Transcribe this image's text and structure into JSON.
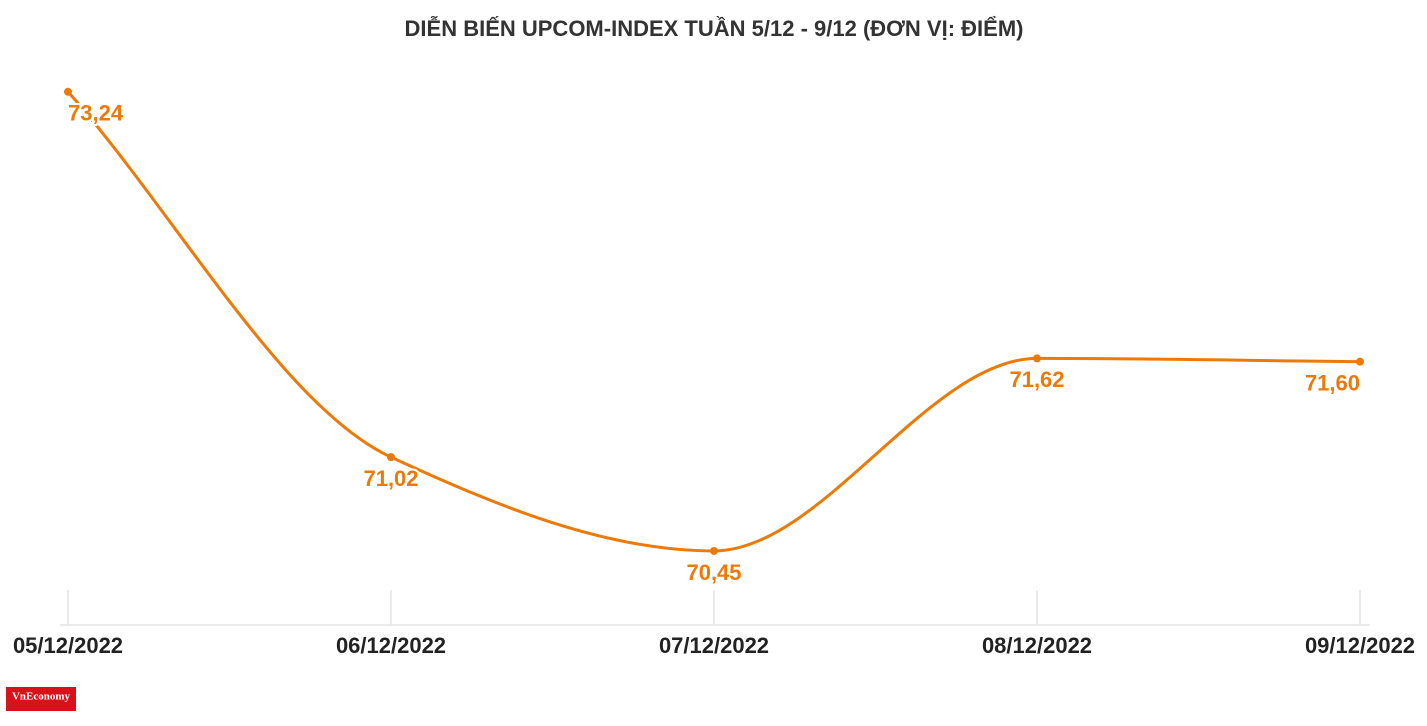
{
  "chart_data": {
    "type": "line",
    "title": "DIỄN BIẾN UPCOM-INDEX TUẦN 5/12 - 9/12 (ĐƠN VỊ: ĐIỂM)",
    "categories": [
      "05/12/2022",
      "06/12/2022",
      "07/12/2022",
      "08/12/2022",
      "09/12/2022"
    ],
    "series": [
      {
        "name": "UPCOM-Index",
        "color": "#ec7a08",
        "values": [
          73.24,
          71.02,
          70.45,
          71.62,
          71.6
        ],
        "value_labels": [
          "73,24",
          "71,02",
          "70,45",
          "71,62",
          "71,60"
        ]
      }
    ],
    "ylim": [
      70,
      73.5
    ],
    "logo": "VnEconomy"
  }
}
